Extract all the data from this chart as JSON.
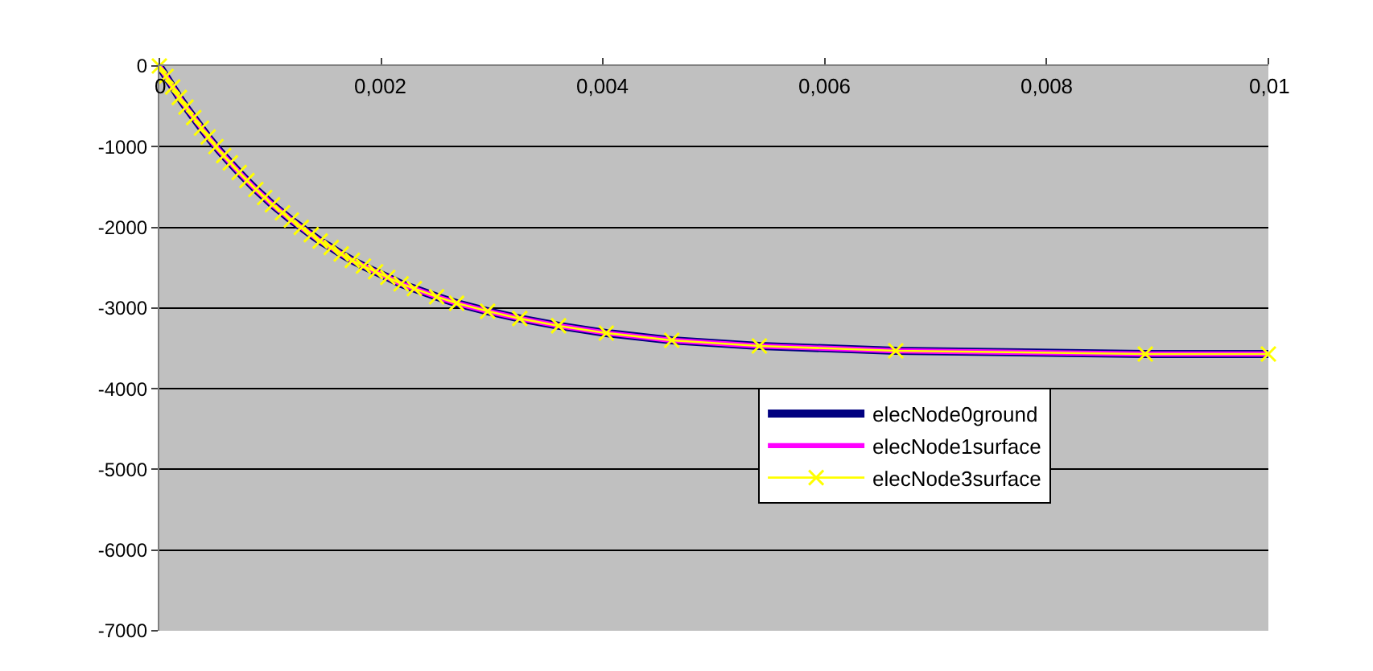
{
  "chart_data": {
    "type": "line",
    "x": [
      0,
      6e-05,
      0.00012,
      0.00018,
      0.00024,
      0.00031,
      0.00038,
      0.00044,
      0.00051,
      0.00058,
      0.00064,
      0.00072,
      0.00079,
      0.00087,
      0.00095,
      0.00102,
      0.00111,
      0.00119,
      0.00128,
      0.00137,
      0.00145,
      0.00155,
      0.00164,
      0.00174,
      0.00184,
      0.00195,
      0.00206,
      0.00218,
      0.0023,
      0.0025,
      0.00268,
      0.00296,
      0.00325,
      0.0036,
      0.00403,
      0.00462,
      0.00541,
      0.00664,
      0.00889,
      0.01
    ],
    "series": [
      {
        "name": "elecNode0ground",
        "color": "#000080",
        "marker": "none",
        "values": [
          0,
          -130,
          -260,
          -390,
          -510,
          -640,
          -770,
          -880,
          -1000,
          -1110,
          -1200,
          -1320,
          -1420,
          -1530,
          -1630,
          -1720,
          -1820,
          -1910,
          -2000,
          -2090,
          -2170,
          -2250,
          -2330,
          -2410,
          -2480,
          -2550,
          -2620,
          -2700,
          -2760,
          -2860,
          -2940,
          -3040,
          -3130,
          -3220,
          -3310,
          -3400,
          -3470,
          -3530,
          -3570,
          -3570
        ]
      },
      {
        "name": "elecNode1surface",
        "color": "#ff00ff",
        "marker": "none",
        "values": [
          0,
          -130,
          -260,
          -390,
          -510,
          -640,
          -770,
          -880,
          -1000,
          -1110,
          -1200,
          -1320,
          -1420,
          -1530,
          -1630,
          -1720,
          -1820,
          -1910,
          -2000,
          -2090,
          -2170,
          -2250,
          -2330,
          -2410,
          -2480,
          -2550,
          -2620,
          -2700,
          -2760,
          -2860,
          -2940,
          -3040,
          -3130,
          -3220,
          -3310,
          -3400,
          -3470,
          -3530,
          -3570,
          -3570
        ]
      },
      {
        "name": "elecNode3surface",
        "color": "#ffff00",
        "marker": "cross",
        "values": [
          0,
          -130,
          -260,
          -390,
          -510,
          -640,
          -770,
          -880,
          -1000,
          -1110,
          -1200,
          -1320,
          -1420,
          -1530,
          -1630,
          -1720,
          -1820,
          -1910,
          -2000,
          -2090,
          -2170,
          -2250,
          -2330,
          -2410,
          -2480,
          -2550,
          -2620,
          -2700,
          -2760,
          -2860,
          -2940,
          -3040,
          -3130,
          -3220,
          -3310,
          -3400,
          -3470,
          -3530,
          -3570,
          -3570
        ]
      }
    ],
    "xlim": [
      0,
      0.01
    ],
    "xticks": [
      0,
      {
        "value": 0.002,
        "label": "0,002"
      },
      {
        "value": 0.004,
        "label": "0,004"
      },
      {
        "value": 0.006,
        "label": "0,006"
      },
      {
        "value": 0.008,
        "label": "0,008"
      },
      {
        "value": 0.01,
        "label": "0,01"
      }
    ],
    "ylim": [
      -7000,
      0
    ],
    "yticks": [
      0,
      -1000,
      -2000,
      -3000,
      -4000,
      -5000,
      -6000,
      -7000
    ],
    "grid": "y",
    "legend": "bottom right"
  }
}
